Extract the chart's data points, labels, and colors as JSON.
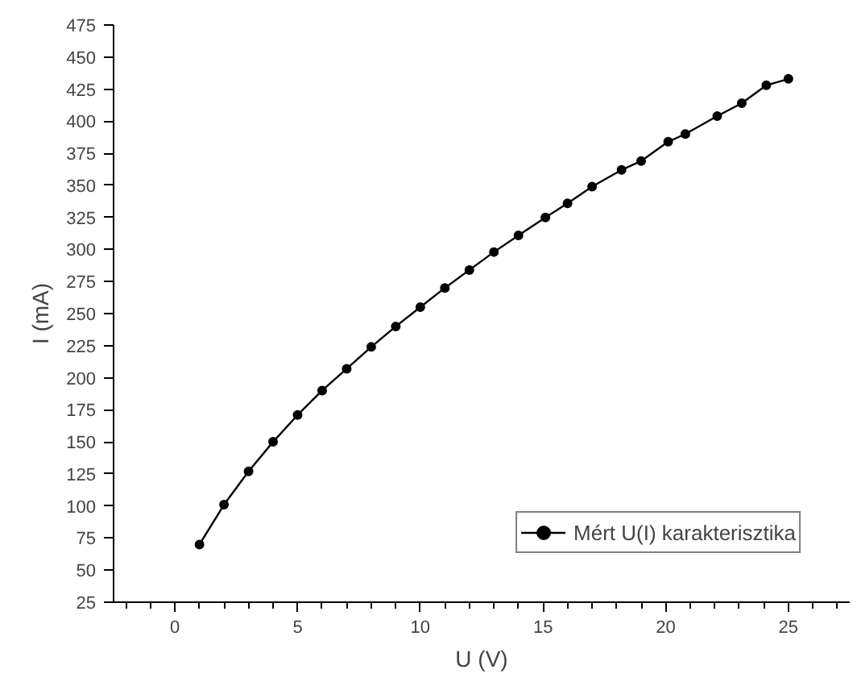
{
  "chart_data": {
    "type": "line",
    "xlabel": "U (V)",
    "ylabel": "I (mA)",
    "xlim": [
      -2.5,
      27.5
    ],
    "ylim": [
      25,
      475
    ],
    "xticks": [
      0,
      5,
      10,
      15,
      20,
      25
    ],
    "yticks": [
      25,
      50,
      75,
      100,
      125,
      150,
      175,
      200,
      225,
      250,
      275,
      300,
      325,
      350,
      375,
      400,
      425,
      450,
      475
    ],
    "grid": false,
    "legend": "bottom right",
    "marker": "circle",
    "line_style": "solid",
    "series": [
      {
        "name": "Mért U(I) karakterisztika",
        "color": "#000000",
        "x": [
          1,
          2,
          3,
          4,
          5,
          6,
          7,
          8,
          9,
          10,
          11,
          12,
          13,
          14,
          15.1,
          16,
          17,
          18.2,
          19,
          20.1,
          20.8,
          22.1,
          23.1,
          24.1,
          25
        ],
        "values": [
          70,
          101,
          127,
          150,
          171,
          190,
          207,
          224,
          240,
          255,
          270,
          284,
          298,
          311,
          325,
          336,
          349,
          362,
          369,
          384,
          390,
          404,
          414,
          428,
          433
        ]
      }
    ]
  }
}
